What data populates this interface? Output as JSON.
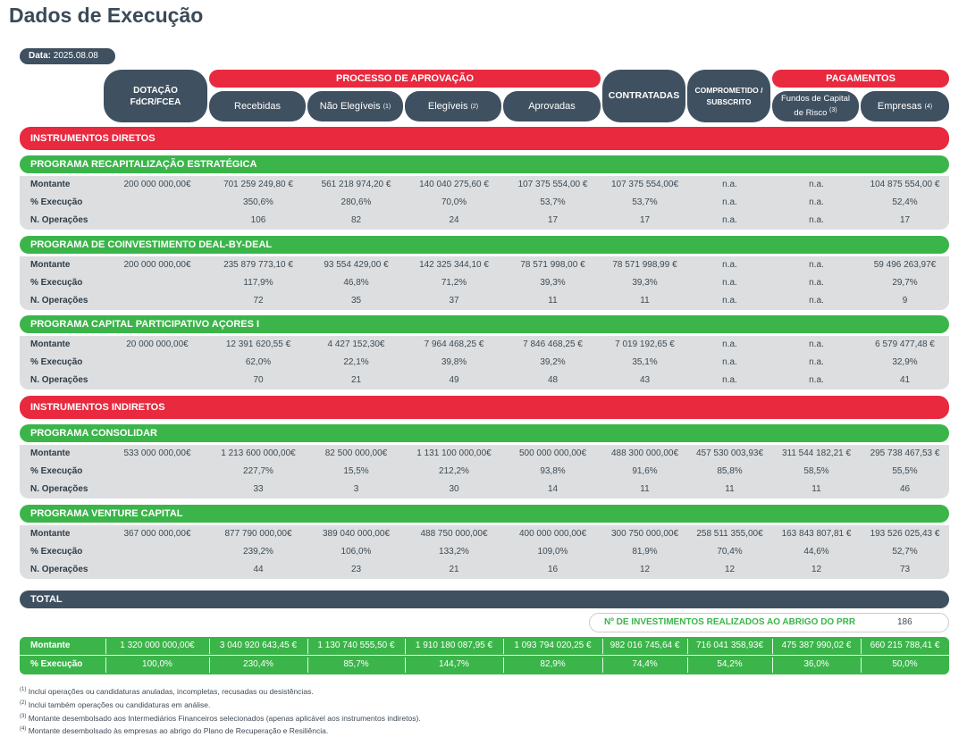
{
  "title": "Dados de Execução",
  "date": {
    "label": "Data:",
    "value": "2025.08.08"
  },
  "headers": {
    "dotacao": "DOTAÇÃO FdCR/FCEA",
    "processo": "PROCESSO DE APROVAÇÃO",
    "recebidas": "Recebidas",
    "nao_elegiveis": "Não Elegíveis",
    "nao_elegiveis_note": "(1)",
    "elegiveis": "Elegíveis",
    "elegiveis_note": "(2)",
    "aprovadas": "Aprovadas",
    "contratadas": "CONTRATADAS",
    "comprometido": "COMPROMETIDO / SUBSCRITO",
    "pagamentos": "PAGAMENTOS",
    "fundos": "Fundos de Capital de Risco",
    "fundos_note": "(3)",
    "empresas": "Empresas",
    "empresas_note": "(4)"
  },
  "row_labels": {
    "montante": "Montante",
    "execucao": "% Execução",
    "operacoes": "N. Operações"
  },
  "sections": {
    "diretos": "INSTRUMENTOS DIRETOS",
    "indiretos": "INSTRUMENTOS INDIRETOS",
    "total": "TOTAL"
  },
  "programs": [
    {
      "name": "PROGRAMA RECAPITALIZAÇÃO ESTRATÉGICA",
      "montante": [
        "200 000 000,00€",
        "701 259 249,80 €",
        "561 218 974,20 €",
        "140 040 275,60 €",
        "107 375 554,00 €",
        "107 375 554,00€",
        "n.a.",
        "n.a.",
        "104 875 554,00 €"
      ],
      "execucao": [
        "",
        "350,6%",
        "280,6%",
        "70,0%",
        "53,7%",
        "53,7%",
        "n.a.",
        "n.a.",
        "52,4%"
      ],
      "operacoes": [
        "",
        "106",
        "82",
        "24",
        "17",
        "17",
        "n.a.",
        "n.a.",
        "17"
      ]
    },
    {
      "name": "PROGRAMA  DE COINVESTIMENTO DEAL-BY-DEAL",
      "montante": [
        "200 000 000,00€",
        "235 879 773,10 €",
        "93 554 429,00 €",
        "142 325 344,10 €",
        "78 571 998,00 €",
        "78 571 998,99 €",
        "n.a.",
        "n.a.",
        "59 496 263,97€"
      ],
      "execucao": [
        "",
        "117,9%",
        "46,8%",
        "71,2%",
        "39,3%",
        "39,3%",
        "n.a.",
        "n.a.",
        "29,7%"
      ],
      "operacoes": [
        "",
        "72",
        "35",
        "37",
        "11",
        "11",
        "n.a.",
        "n.a.",
        "9"
      ]
    },
    {
      "name": "PROGRAMA CAPITAL PARTICIPATIVO AÇORES I",
      "montante": [
        "20 000 000,00€",
        "12 391 620,55 €",
        "4 427 152,30€",
        "7 964 468,25 €",
        "7 846 468,25 €",
        "7 019 192,65 €",
        "n.a.",
        "n.a.",
        "6 579 477,48 €"
      ],
      "execucao": [
        "",
        "62,0%",
        "22,1%",
        "39,8%",
        "39,2%",
        "35,1%",
        "n.a.",
        "n.a.",
        "32,9%"
      ],
      "operacoes": [
        "",
        "70",
        "21",
        "49",
        "48",
        "43",
        "n.a.",
        "n.a.",
        "41"
      ]
    },
    {
      "name": "PROGRAMA CONSOLIDAR",
      "montante": [
        "533 000 000,00€",
        "1 213 600 000,00€",
        "82 500 000,00€",
        "1 131 100 000,00€",
        "500 000 000,00€",
        "488 300 000,00€",
        "457 530 003,93€",
        "311 544 182,21 €",
        "295 738 467,53 €"
      ],
      "execucao": [
        "",
        "227,7%",
        "15,5%",
        "212,2%",
        "93,8%",
        "91,6%",
        "85,8%",
        "58,5%",
        "55,5%"
      ],
      "operacoes": [
        "",
        "33",
        "3",
        "30",
        "14",
        "11",
        "11",
        "11",
        "46"
      ]
    },
    {
      "name": "PROGRAMA VENTURE CAPITAL",
      "montante": [
        "367 000 000,00€",
        "877 790 000,00€",
        "389 040 000,00€",
        "488 750 000,00€",
        "400 000 000,00€",
        "300 750 000,00€",
        "258 511 355,00€",
        "163 843 807,81 €",
        "193 526 025,43 €"
      ],
      "execucao": [
        "",
        "239,2%",
        "106,0%",
        "133,2%",
        "109,0%",
        "81,9%",
        "70,4%",
        "44,6%",
        "52,7%"
      ],
      "operacoes": [
        "",
        "44",
        "23",
        "21",
        "16",
        "12",
        "12",
        "12",
        "73"
      ]
    }
  ],
  "prr": {
    "label": "Nº DE INVESTIMENTOS REALIZADOS AO ABRIGO DO PRR",
    "value": "186"
  },
  "total": {
    "montante": [
      "1 320 000 000,00€",
      "3 040 920 643,45 €",
      "1 130 740 555,50 €",
      "1 910 180 087,95 €",
      "1 093 794 020,25 €",
      "982 016 745,64 €",
      "716 041 358,93€",
      "475 387 990,02 €",
      "660 215 788,41 €"
    ],
    "execucao": [
      "100,0%",
      "230,4%",
      "85,7%",
      "144,7%",
      "82,9%",
      "74,4%",
      "54,2%",
      "36,0%",
      "50,0%"
    ]
  },
  "notes": [
    {
      "mark": "(1)",
      "text": "Inclui operações ou candidaturas anuladas, incompletas, recusadas ou desistências."
    },
    {
      "mark": "(2)",
      "text": "Inclui também operações ou candidaturas em análise."
    },
    {
      "mark": "(3)",
      "text": "Montante desembolsado aos Intermediários Financeiros selecionados (apenas aplicável aos instrumentos indiretos)."
    },
    {
      "mark": "(4)",
      "text": "Montante desembolsado às empresas ao abrigo do Plano de Recuperação e Resiliência."
    }
  ],
  "colors": {
    "red": "#e8293e",
    "green": "#3bb54a",
    "dark": "#3f5060",
    "gray": "#dcdedf"
  }
}
